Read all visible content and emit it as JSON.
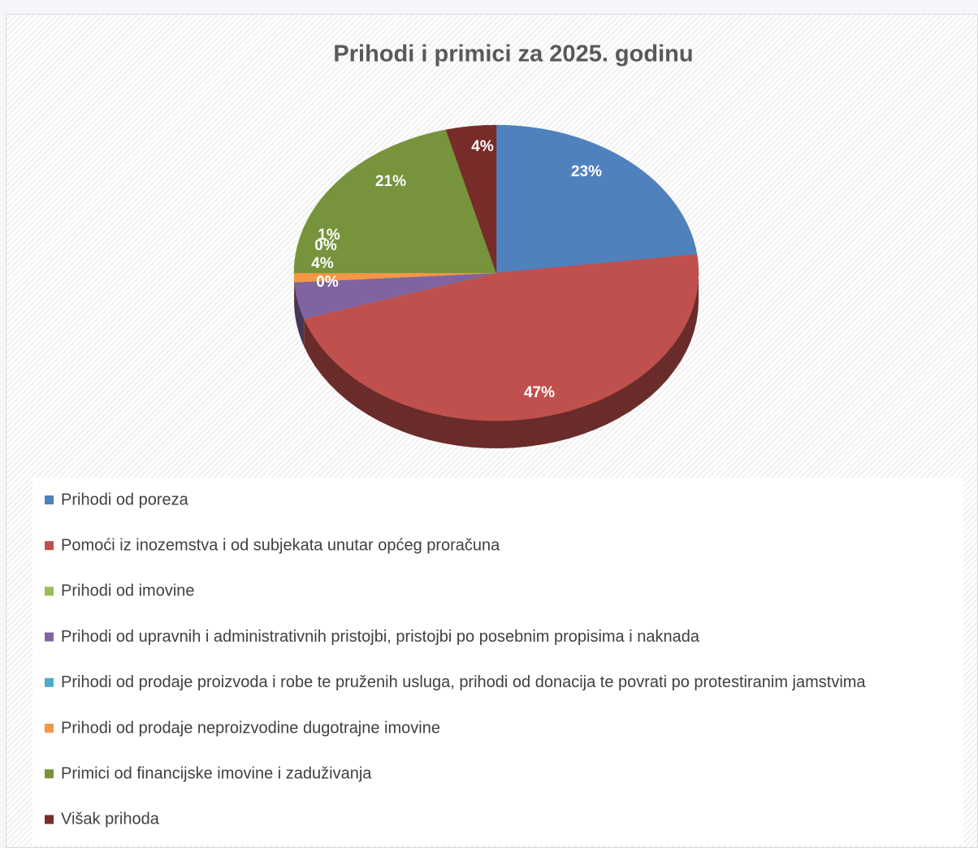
{
  "chart_data": {
    "type": "pie3d",
    "title": "Prihodi i primici za 2025. godinu",
    "categories": [
      "Prihodi od poreza",
      "Pomoći iz inozemstva i od subjekata unutar općeg proračuna",
      "Prihodi od imovine",
      "Prihodi od upravnih i administrativnih pristojbi, pristojbi po posebnim propisima i naknada",
      "Prihodi od prodaje proizvoda i robe te pruženih usluga, prihodi od donacija te povrati po protestiranim jamstvima",
      "Prihodi od prodaje neproizvodine dugotrajne imovine",
      "Primici od financijske imovine i zaduživanja",
      "Višak prihoda"
    ],
    "values": [
      23,
      47,
      0,
      4,
      0,
      1,
      21,
      4
    ],
    "value_labels": [
      "23%",
      "47%",
      "0%",
      "4%",
      "0%",
      "1%",
      "21%",
      "4%"
    ],
    "colors": [
      "#4f81bd",
      "#c0504d",
      "#9bbb59",
      "#8064a2",
      "#4bacc6",
      "#f79646",
      "#77933c",
      "#772c2a"
    ],
    "legend": "bottom"
  }
}
